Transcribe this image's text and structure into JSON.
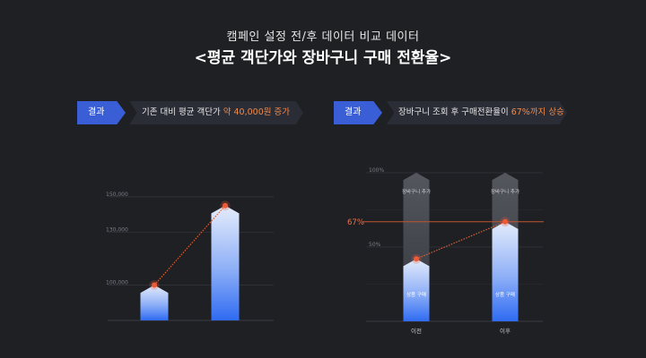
{
  "header": {
    "subtitle": "캠페인 설정 전/후 데이터 비교 데이터",
    "title": "<평균 객단가와 장바구니 구매 전환율>"
  },
  "left_panel": {
    "badge": "결과",
    "text_prefix": "기존 대비 평균 객단가 ",
    "text_highlight": "약 40,000원 증가",
    "text_suffix": ""
  },
  "right_panel": {
    "badge": "결과",
    "text_prefix": "장바구니 조회 후 구매전환율이 ",
    "text_highlight": "67%까지 상승",
    "text_suffix": ""
  },
  "chart_data": [
    {
      "type": "bar",
      "title": "",
      "y_ticks": [
        "150,000",
        "130,000",
        "100,000"
      ],
      "ylim": [
        80000,
        155000
      ],
      "categories": [
        "",
        ""
      ],
      "values": [
        100000,
        145000
      ],
      "grid": true
    },
    {
      "type": "bar",
      "title": "",
      "y_ticks": [
        "100%",
        "50%"
      ],
      "ylim": [
        0,
        100
      ],
      "categories": [
        "이전",
        "이후"
      ],
      "reference_line": {
        "value": 67,
        "label": "67%"
      },
      "series": [
        {
          "values": [
            100,
            100
          ],
          "label": "장바구니 추가"
        },
        {
          "values": [
            42,
            67
          ],
          "label": "상품 구매"
        }
      ],
      "grid": true
    }
  ],
  "colors": {
    "background": "#1f2024",
    "accent": "#3a5ed6",
    "highlight": "#f08a4b",
    "bar_top": "#e4ecfb",
    "bar_bottom": "#2f6bf2",
    "reference": "#c3532e"
  }
}
